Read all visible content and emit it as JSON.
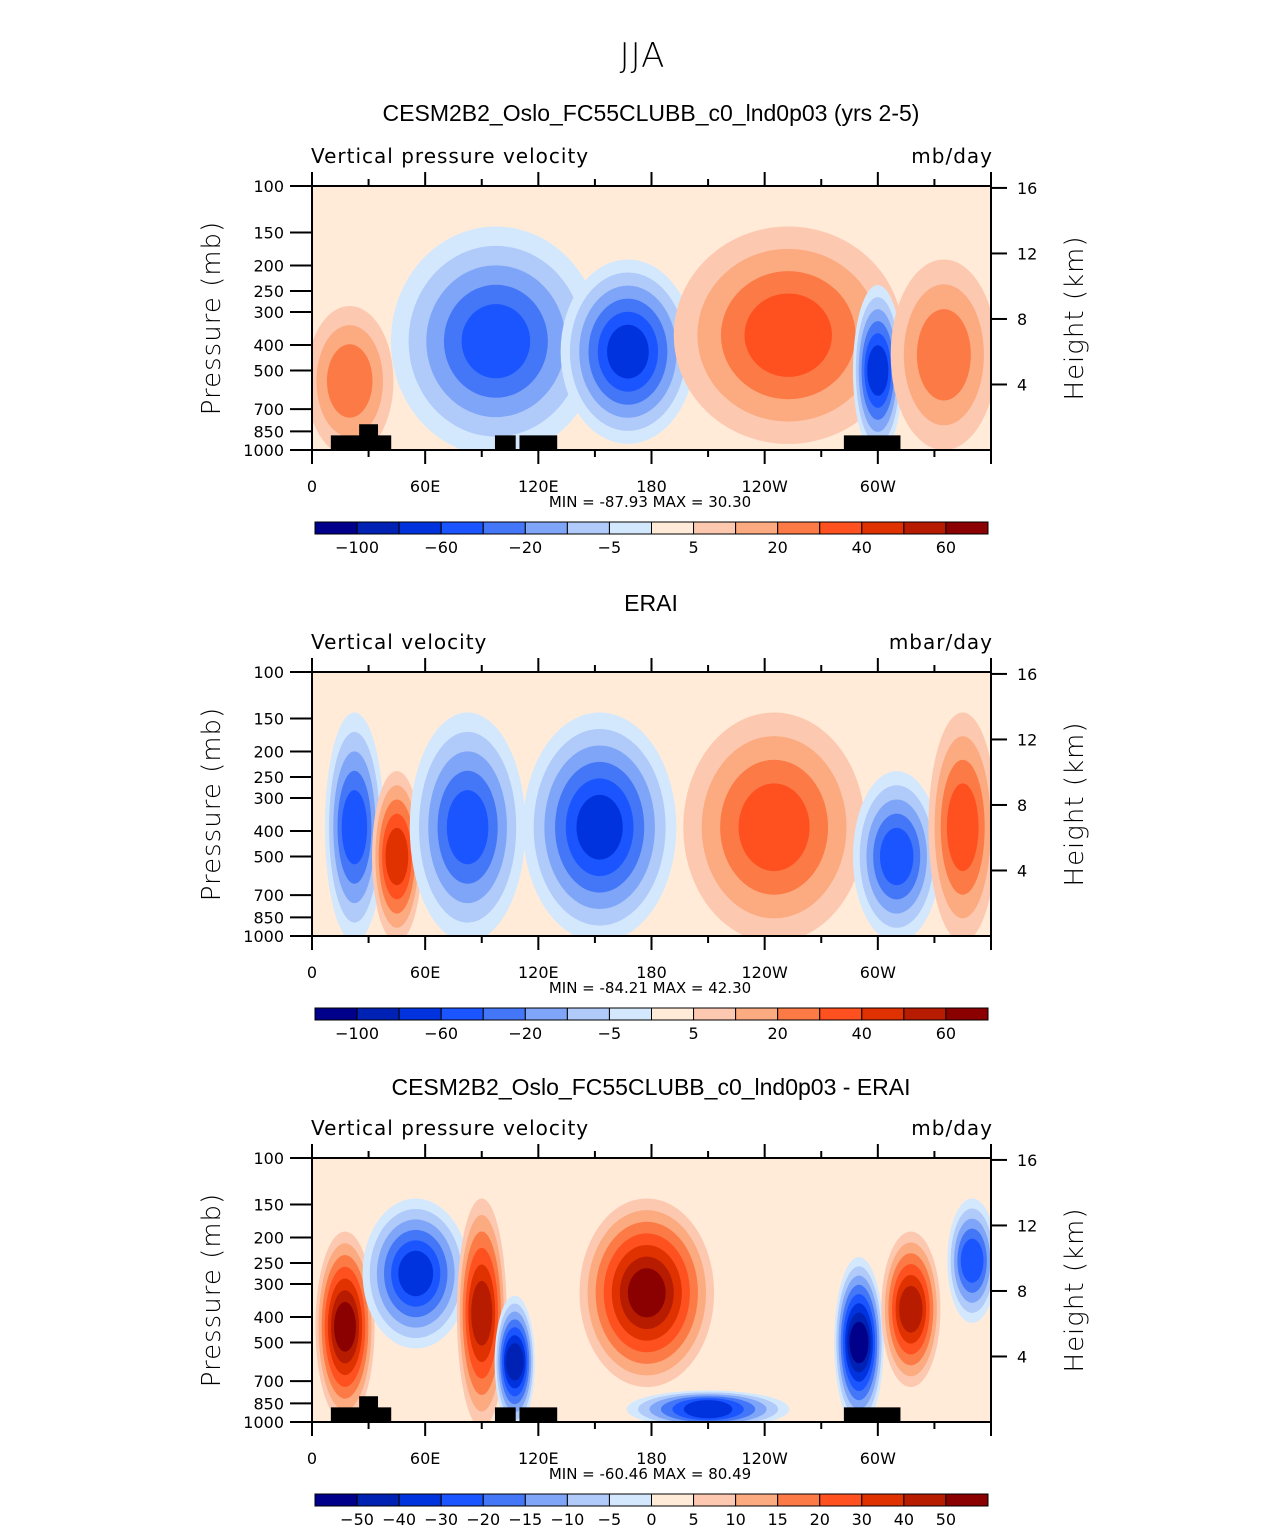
{
  "figure": {
    "title": "JJA"
  },
  "colorscale": {
    "colors": [
      "#00008b",
      "#0022b4",
      "#0033dd",
      "#1a55ff",
      "#4477f7",
      "#7fa5f8",
      "#b0caf9",
      "#d4e8fd",
      "#ffebd8",
      "#fdc8b0",
      "#fcaa80",
      "#fc7a45",
      "#ff5020",
      "#e03200",
      "#b81c00",
      "#8b0000"
    ]
  },
  "chart_data": [
    {
      "type": "heatmap",
      "panel_title": "CESM2B2_Oslo_FC55CLUBB_c0_lnd0p03 (yrs 2-5)",
      "left_label": "Vertical pressure velocity",
      "right_label": "mb/day",
      "xlabel": "",
      "ylabel": "Pressure (mb)",
      "y2label": "Height (km)",
      "x_ticks": [
        "0",
        "60E",
        "120E",
        "180",
        "120W",
        "60W"
      ],
      "x_range": [
        0,
        360
      ],
      "y_ticks": [
        "100",
        "150",
        "200",
        "250",
        "300",
        "400",
        "500",
        "700",
        "850",
        "1000"
      ],
      "y_range_mb": [
        1000,
        100
      ],
      "y2_ticks": [
        "16",
        "12",
        "8",
        "4"
      ],
      "min_max": "MIN = -87.93   MAX =  30.30",
      "colorbar_labels": [
        "-100",
        "-60",
        "-20",
        "-5",
        "5",
        "20",
        "40",
        "60"
      ],
      "colorbar_levels": [
        -120,
        -100,
        -80,
        -60,
        -40,
        -20,
        -10,
        -5,
        0,
        5,
        10,
        20,
        30,
        40,
        50,
        60
      ],
      "regions": [
        {
          "lon": [
            0,
            40
          ],
          "p": [
            300,
            1000
          ],
          "sign": "positive",
          "max": 25
        },
        {
          "lon": [
            45,
            150
          ],
          "p": [
            150,
            1000
          ],
          "sign": "negative",
          "min": -70
        },
        {
          "lon": [
            135,
            200
          ],
          "p": [
            200,
            900
          ],
          "sign": "negative",
          "min": -87.93
        },
        {
          "lon": [
            195,
            310
          ],
          "p": [
            150,
            900
          ],
          "sign": "positive",
          "max": 30.3
        },
        {
          "lon": [
            290,
            310
          ],
          "p": [
            250,
            1000
          ],
          "sign": "negative",
          "min": -80
        },
        {
          "lon": [
            310,
            360
          ],
          "p": [
            200,
            950
          ],
          "sign": "positive",
          "max": 28
        }
      ]
    },
    {
      "type": "heatmap",
      "panel_title": "ERAI",
      "left_label": "Vertical velocity",
      "right_label": "mbar/day",
      "xlabel": "",
      "ylabel": "Pressure (mb)",
      "y2label": "Height (km)",
      "x_ticks": [
        "0",
        "60E",
        "120E",
        "180",
        "120W",
        "60W"
      ],
      "x_range": [
        0,
        360
      ],
      "y_ticks": [
        "100",
        "150",
        "200",
        "250",
        "300",
        "400",
        "500",
        "700",
        "850",
        "1000"
      ],
      "y_range_mb": [
        1000,
        100
      ],
      "y2_ticks": [
        "16",
        "12",
        "8",
        "4"
      ],
      "min_max": "MIN = -84.21   MAX =  42.30",
      "colorbar_labels": [
        "-100",
        "-60",
        "-20",
        "-5",
        "5",
        "20",
        "40",
        "60"
      ],
      "colorbar_levels": [
        -120,
        -100,
        -80,
        -60,
        -40,
        -20,
        -10,
        -5,
        0,
        5,
        10,
        20,
        30,
        40,
        50,
        60
      ],
      "regions": [
        {
          "lon": [
            10,
            35
          ],
          "p": [
            150,
            1000
          ],
          "sign": "negative",
          "min": -60
        },
        {
          "lon": [
            35,
            55
          ],
          "p": [
            250,
            1000
          ],
          "sign": "positive",
          "max": 42.3
        },
        {
          "lon": [
            55,
            110
          ],
          "p": [
            150,
            1000
          ],
          "sign": "negative",
          "min": -70
        },
        {
          "lon": [
            115,
            190
          ],
          "p": [
            150,
            1000
          ],
          "sign": "negative",
          "min": -84.21
        },
        {
          "lon": [
            200,
            290
          ],
          "p": [
            150,
            1000
          ],
          "sign": "positive",
          "max": 35
        },
        {
          "lon": [
            290,
            330
          ],
          "p": [
            250,
            1000
          ],
          "sign": "negative",
          "min": -75
        },
        {
          "lon": [
            330,
            360
          ],
          "p": [
            150,
            1000
          ],
          "sign": "positive",
          "max": 30
        }
      ]
    },
    {
      "type": "heatmap",
      "panel_title": "CESM2B2_Oslo_FC55CLUBB_c0_lnd0p03 - ERAI",
      "left_label": "Vertical pressure velocity",
      "right_label": "mb/day",
      "xlabel": "",
      "ylabel": "Pressure (mb)",
      "y2label": "Height (km)",
      "x_ticks": [
        "0",
        "60E",
        "120E",
        "180",
        "120W",
        "60W"
      ],
      "x_range": [
        0,
        360
      ],
      "y_ticks": [
        "100",
        "150",
        "200",
        "250",
        "300",
        "400",
        "500",
        "700",
        "850",
        "1000"
      ],
      "y_range_mb": [
        1000,
        100
      ],
      "y2_ticks": [
        "16",
        "12",
        "8",
        "4"
      ],
      "min_max": "MIN = -60.46   MAX =  80.49",
      "colorbar_labels": [
        "-50",
        "-40",
        "-30",
        "-20",
        "-15",
        "-10",
        "-5",
        "0",
        "5",
        "10",
        "15",
        "20",
        "30",
        "40",
        "50"
      ],
      "colorbar_levels": [
        -60,
        -50,
        -40,
        -30,
        -20,
        -15,
        -10,
        -5,
        0,
        5,
        10,
        15,
        20,
        30,
        40,
        50
      ],
      "regions": [
        {
          "lon": [
            5,
            30
          ],
          "p": [
            200,
            950
          ],
          "sign": "positive",
          "max": 80.49
        },
        {
          "lon": [
            30,
            80
          ],
          "p": [
            150,
            500
          ],
          "sign": "negative",
          "min": -40
        },
        {
          "lon": [
            80,
            100
          ],
          "p": [
            150,
            1000
          ],
          "sign": "positive",
          "max": 45
        },
        {
          "lon": [
            100,
            115
          ],
          "p": [
            350,
            1000
          ],
          "sign": "negative",
          "min": -50
        },
        {
          "lon": [
            145,
            210
          ],
          "p": [
            150,
            700
          ],
          "sign": "positive",
          "max": 50
        },
        {
          "lon": [
            170,
            250
          ],
          "p": [
            800,
            1000
          ],
          "sign": "negative",
          "min": -40
        },
        {
          "lon": [
            280,
            300
          ],
          "p": [
            250,
            1000
          ],
          "sign": "negative",
          "min": -60.46
        },
        {
          "lon": [
            305,
            330
          ],
          "p": [
            200,
            700
          ],
          "sign": "positive",
          "max": 40
        },
        {
          "lon": [
            340,
            360
          ],
          "p": [
            150,
            400
          ],
          "sign": "negative",
          "min": -30
        }
      ]
    }
  ]
}
